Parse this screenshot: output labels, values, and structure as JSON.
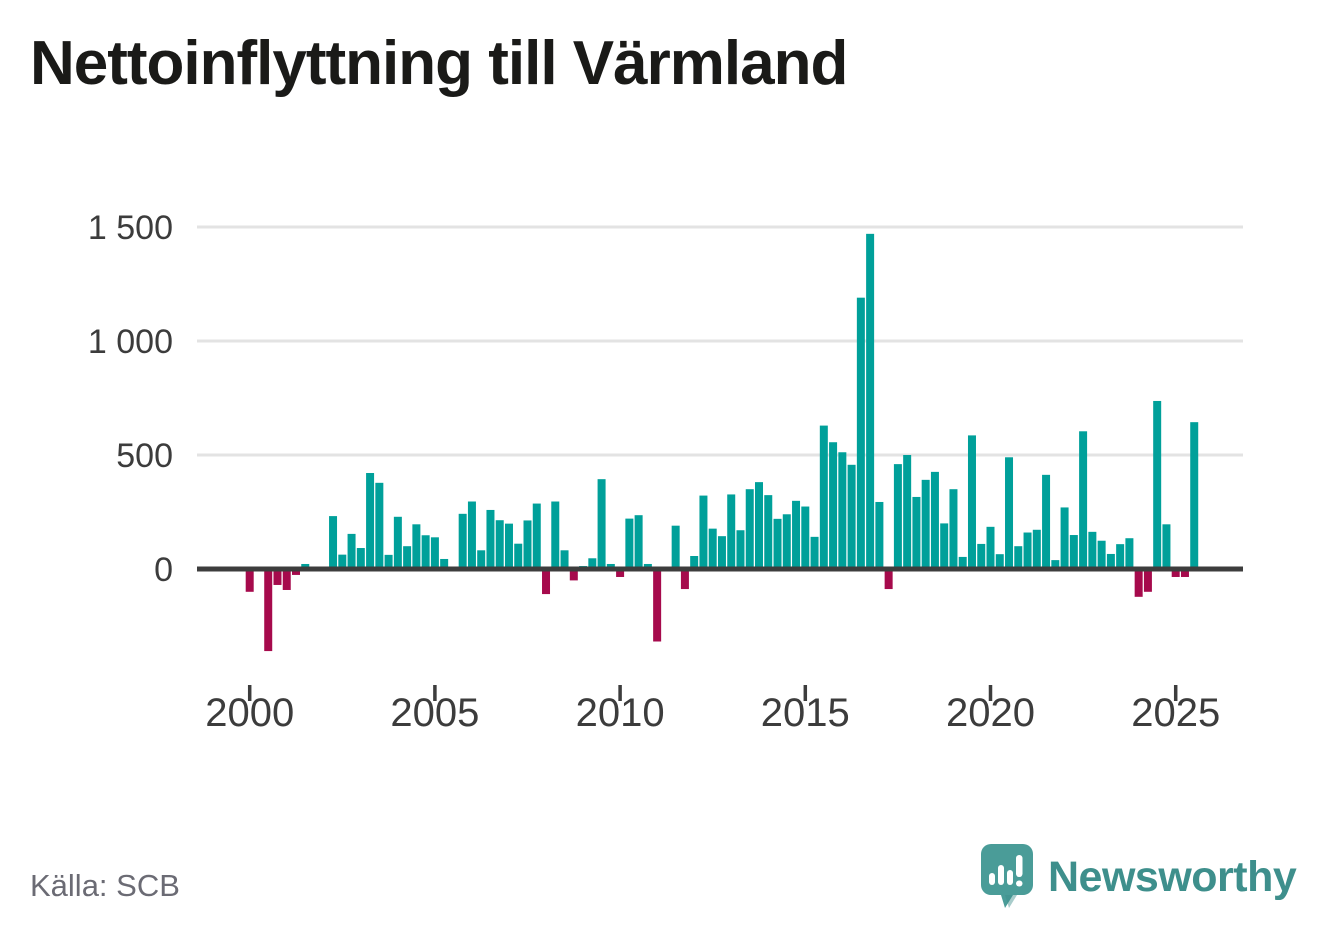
{
  "header": {
    "title": "Nettoinflyttning till Värmland"
  },
  "footer": {
    "source_label": "Källa: SCB"
  },
  "logo": {
    "brand_name": "Newsworthy",
    "icon": "speech-bubble-bar-chart",
    "icon_color": "#4a9c98",
    "icon_glyph_color": "#ffffff",
    "text_color": "#3e8f8c"
  },
  "chart_data": {
    "type": "bar",
    "title": "Nettoinflyttning till Värmland",
    "frequency": "quarterly",
    "start_period": "2000 Q1",
    "end_period": "2025 Q3",
    "legend": "none",
    "grid": "horizontal",
    "y_axis": {
      "tick_values": [
        0,
        500,
        1000,
        1500
      ],
      "tick_labels": [
        "0",
        "500",
        "1 000",
        "1 500"
      ],
      "range": [
        -400,
        1550
      ]
    },
    "x_axis": {
      "tick_years": [
        2000,
        2005,
        2010,
        2015,
        2020,
        2025
      ],
      "tick_labels": [
        "2000",
        "2005",
        "2010",
        "2015",
        "2020",
        "2025"
      ]
    },
    "colors": {
      "positive": "#00a09a",
      "negative": "#a60a4c",
      "axis": "#3d3d3d",
      "gridline": "#e3e3e3",
      "tick_label": "#3c3c3c"
    },
    "series_by_year": [
      {
        "year": 2000,
        "values": [
          -100,
          0,
          -360,
          -70
        ]
      },
      {
        "year": 2001,
        "values": [
          -92,
          -26,
          22,
          0
        ]
      },
      {
        "year": 2002,
        "values": [
          0,
          232,
          63,
          154
        ]
      },
      {
        "year": 2003,
        "values": [
          92,
          421,
          378,
          62
        ]
      },
      {
        "year": 2004,
        "values": [
          229,
          100,
          196,
          148
        ]
      },
      {
        "year": 2005,
        "values": [
          139,
          44,
          7,
          242
        ]
      },
      {
        "year": 2006,
        "values": [
          296,
          82,
          259,
          214
        ]
      },
      {
        "year": 2007,
        "values": [
          199,
          111,
          213,
          287
        ]
      },
      {
        "year": 2008,
        "values": [
          -110,
          296,
          82,
          -50
        ]
      },
      {
        "year": 2009,
        "values": [
          13,
          47,
          394,
          22
        ]
      },
      {
        "year": 2010,
        "values": [
          -35,
          221,
          236,
          22
        ]
      },
      {
        "year": 2011,
        "values": [
          -318,
          10,
          190,
          -88
        ]
      },
      {
        "year": 2012,
        "values": [
          57,
          322,
          177,
          144
        ]
      },
      {
        "year": 2013,
        "values": [
          327,
          170,
          350,
          381
        ]
      },
      {
        "year": 2014,
        "values": [
          324,
          220,
          240,
          299
        ]
      },
      {
        "year": 2015,
        "values": [
          274,
          141,
          629,
          556
        ]
      },
      {
        "year": 2016,
        "values": [
          512,
          457,
          1190,
          1470
        ]
      },
      {
        "year": 2017,
        "values": [
          294,
          -88,
          460,
          500
        ]
      },
      {
        "year": 2018,
        "values": [
          316,
          391,
          426,
          200
        ]
      },
      {
        "year": 2019,
        "values": [
          350,
          53,
          586,
          110
        ]
      },
      {
        "year": 2020,
        "values": [
          185,
          65,
          490,
          100
        ]
      },
      {
        "year": 2021,
        "values": [
          160,
          172,
          413,
          39
        ]
      },
      {
        "year": 2022,
        "values": [
          270,
          149,
          604,
          163
        ]
      },
      {
        "year": 2023,
        "values": [
          124,
          66,
          109,
          135
        ]
      },
      {
        "year": 2024,
        "values": [
          -122,
          -100,
          737,
          196
        ]
      },
      {
        "year": 2025,
        "values": [
          -35,
          -35,
          644
        ]
      }
    ]
  }
}
